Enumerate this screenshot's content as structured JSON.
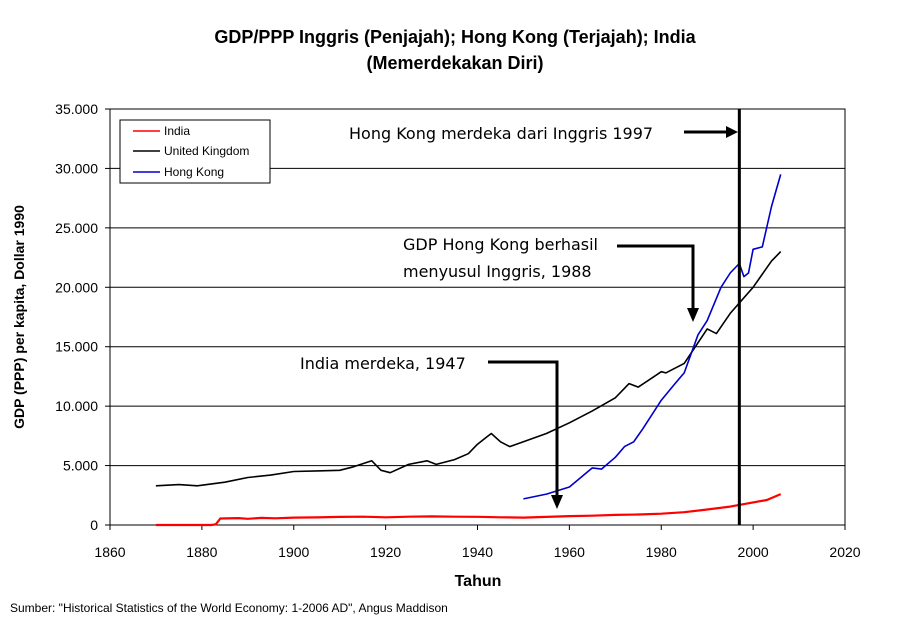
{
  "chart_data": {
    "type": "line",
    "title": [
      "GDP/PPP  Inggris (Penjajah); Hong Kong (Terjajah); India",
      "(Memerdekakan Diri)"
    ],
    "xlabel": "Tahun",
    "ylabel": "GDP (PPP) per kapita, Dollar 1990",
    "xlim": [
      1860,
      2020
    ],
    "ylim": [
      0,
      35000
    ],
    "xticks": [
      1860,
      1880,
      1900,
      1920,
      1940,
      1960,
      1980,
      2000,
      2020
    ],
    "xtick_labels": [
      "1860",
      "1880",
      "1900",
      "1920",
      "1940",
      "1960",
      "1980",
      "2000",
      "2020"
    ],
    "yticks": [
      0,
      5000,
      10000,
      15000,
      20000,
      25000,
      30000,
      35000
    ],
    "ytick_labels": [
      "0",
      "5.000",
      "10.000",
      "15.000",
      "20.000",
      "25.000",
      "30.000",
      "35.000"
    ],
    "grid": "horizontal",
    "legend_position": "top-left",
    "series": [
      {
        "name": "India",
        "color": "#ff0000",
        "x": [
          1870,
          1882,
          1883,
          1884,
          1888,
          1890,
          1893,
          1896,
          1900,
          1905,
          1910,
          1915,
          1920,
          1925,
          1930,
          1935,
          1940,
          1945,
          1950,
          1955,
          1960,
          1965,
          1970,
          1975,
          1980,
          1985,
          1990,
          1995,
          2000,
          2003,
          2006
        ],
        "values": [
          0,
          0,
          50,
          550,
          580,
          520,
          600,
          560,
          620,
          640,
          680,
          700,
          650,
          700,
          720,
          700,
          690,
          650,
          620,
          680,
          750,
          780,
          850,
          880,
          950,
          1080,
          1300,
          1550,
          1900,
          2100,
          2600
        ]
      },
      {
        "name": "United Kingdom",
        "color": "#000000",
        "x": [
          1870,
          1875,
          1879,
          1885,
          1890,
          1895,
          1900,
          1905,
          1910,
          1913,
          1917,
          1919,
          1921,
          1925,
          1929,
          1931,
          1935,
          1938,
          1940,
          1942,
          1943,
          1945,
          1947,
          1950,
          1955,
          1960,
          1965,
          1970,
          1973,
          1975,
          1980,
          1981,
          1985,
          1990,
          1992,
          1995,
          2000,
          2004,
          2006
        ],
        "values": [
          3300,
          3400,
          3300,
          3600,
          4000,
          4200,
          4500,
          4550,
          4600,
          4900,
          5400,
          4600,
          4400,
          5100,
          5400,
          5100,
          5500,
          6000,
          6800,
          7400,
          7700,
          7000,
          6600,
          7000,
          7700,
          8600,
          9600,
          10700,
          11900,
          11600,
          12900,
          12800,
          13600,
          16500,
          16100,
          17800,
          20000,
          22200,
          23000
        ]
      },
      {
        "name": "Hong Kong",
        "color": "#0000cc",
        "x": [
          1950,
          1955,
          1960,
          1965,
          1967,
          1970,
          1972,
          1974,
          1976,
          1980,
          1983,
          1985,
          1988,
          1990,
          1993,
          1995,
          1997,
          1998,
          1999,
          2000,
          2002,
          2004,
          2006
        ],
        "values": [
          2200,
          2600,
          3200,
          4800,
          4700,
          5700,
          6600,
          7000,
          8100,
          10500,
          11900,
          12800,
          16000,
          17200,
          20000,
          21200,
          22000,
          20900,
          21200,
          23200,
          23400,
          26800,
          29500
        ]
      }
    ],
    "vertical_marker": {
      "x": 1997
    },
    "annotations": [
      {
        "text": "Hong Kong merdeka dari Inggris 1997",
        "target_x": 1997,
        "target_y": 33000
      },
      {
        "text": [
          "GDP Hong Kong berhasil",
          "menyusul Inggris, 1988"
        ],
        "target_x": 1987,
        "target_y": 17000
      },
      {
        "text": "India merdeka, 1947",
        "target_x": 1958,
        "target_y": 800
      }
    ]
  },
  "footer": {
    "source": "Sumber: \"Historical Statistics of the World Economy:  1-2006 AD\", Angus Maddison"
  }
}
